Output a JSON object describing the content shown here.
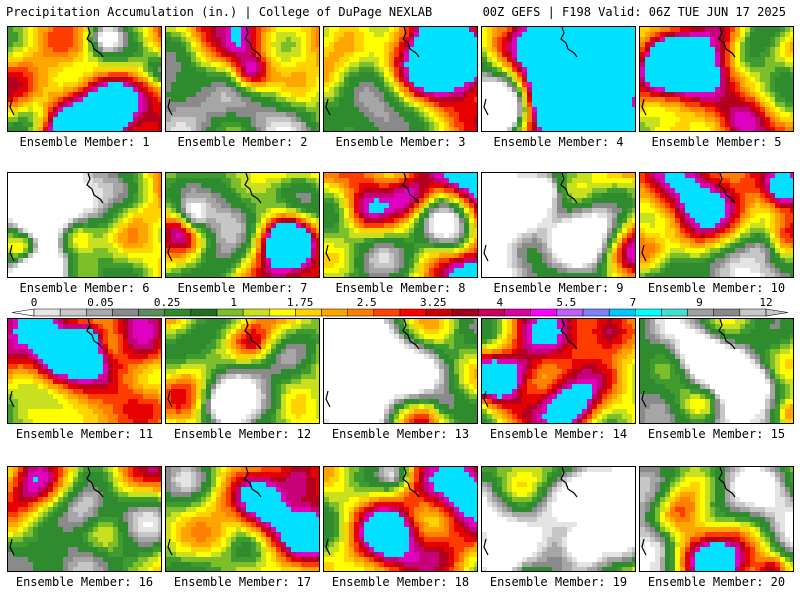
{
  "header": {
    "left": "Precipitation Accumulation (in.) | College of DuPage NEXLAB",
    "right": "00Z GEFS | F198 Valid: 06Z TUE JUN 17 2025"
  },
  "panels": [
    {
      "label": "Ensemble Member: 1",
      "seed": 11,
      "bias": 0.1
    },
    {
      "label": "Ensemble Member: 2",
      "seed": 23,
      "bias": 0.05
    },
    {
      "label": "Ensemble Member: 3",
      "seed": 37,
      "bias": 0.1
    },
    {
      "label": "Ensemble Member: 4",
      "seed": 41,
      "bias": 0.15
    },
    {
      "label": "Ensemble Member: 5",
      "seed": 53,
      "bias": 0.1
    },
    {
      "label": "Ensemble Member: 6",
      "seed": 61,
      "bias": 0.0
    },
    {
      "label": "Ensemble Member: 7",
      "seed": 73,
      "bias": 0.12
    },
    {
      "label": "Ensemble Member: 8",
      "seed": 89,
      "bias": 0.12
    },
    {
      "label": "Ensemble Member: 9",
      "seed": 97,
      "bias": 0.05
    },
    {
      "label": "Ensemble Member: 10",
      "seed": 101,
      "bias": 0.05
    },
    {
      "label": "Ensemble Member: 11",
      "seed": 113,
      "bias": 0.0
    },
    {
      "label": "Ensemble Member: 12",
      "seed": 127,
      "bias": 0.05
    },
    {
      "label": "Ensemble Member: 13",
      "seed": 131,
      "bias": -0.05
    },
    {
      "label": "Ensemble Member: 14",
      "seed": 149,
      "bias": -0.05
    },
    {
      "label": "Ensemble Member: 15",
      "seed": 157,
      "bias": -0.08
    },
    {
      "label": "Ensemble Member: 16",
      "seed": 163,
      "bias": 0.08
    },
    {
      "label": "Ensemble Member: 17",
      "seed": 173,
      "bias": 0.05
    },
    {
      "label": "Ensemble Member: 18",
      "seed": 181,
      "bias": 0.05
    },
    {
      "label": "Ensemble Member: 19",
      "seed": 191,
      "bias": 0.0
    },
    {
      "label": "Ensemble Member: 20",
      "seed": 199,
      "bias": -0.08
    }
  ],
  "colorbar": {
    "labels": [
      "0",
      "0.05",
      "0.25",
      "1",
      "1.75",
      "2.5",
      "3.25",
      "4",
      "5.5",
      "7",
      "9",
      "12"
    ],
    "colors": [
      "#e6e6e6",
      "#c8c8c8",
      "#a8a8a8",
      "#8a8a8a",
      "#5e8c5e",
      "#2e8b2e",
      "#1f6f1f",
      "#7cbf2a",
      "#c8e020",
      "#ffff00",
      "#ffd200",
      "#ffa500",
      "#ff7f00",
      "#ff4500",
      "#ff0000",
      "#cc0000",
      "#a00018",
      "#c8005a",
      "#dc00a0",
      "#ff00ff",
      "#c060ff",
      "#8080ff",
      "#00c8ff",
      "#00ffff",
      "#40e0d0",
      "#a0a0a0",
      "#888888",
      "#c8c8c8"
    ]
  }
}
